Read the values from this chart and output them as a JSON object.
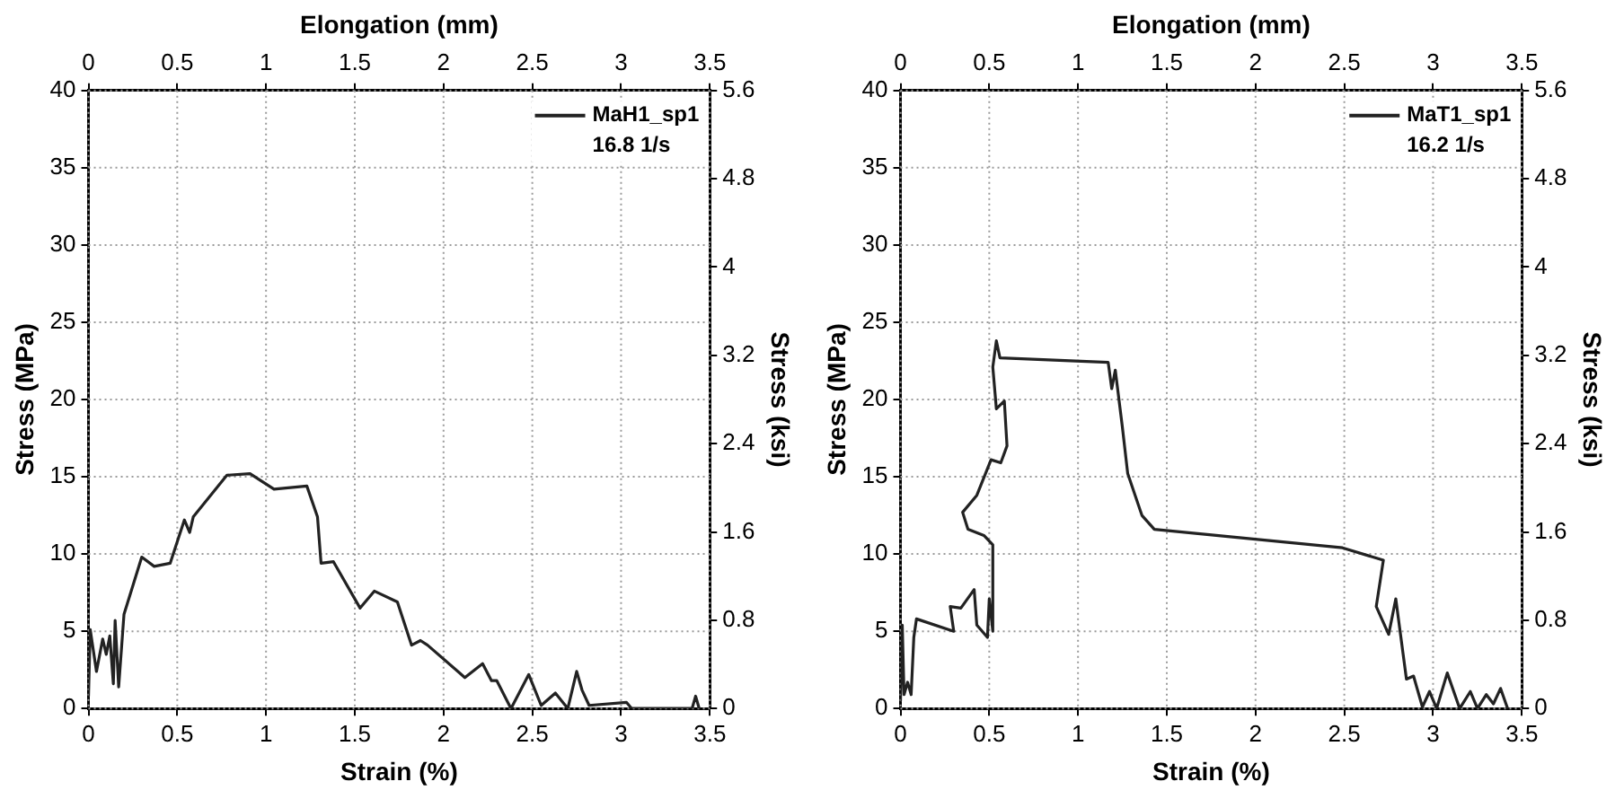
{
  "chart_data": [
    {
      "type": "line",
      "xlabel": "Strain (%)",
      "x2label": "Elongation (mm)",
      "ylabel": "Stress (MPa)",
      "y2label": "Stress (ksi)",
      "xlim": [
        0,
        3.5
      ],
      "xticks": [
        0,
        0.5,
        1,
        1.5,
        2,
        2.5,
        3,
        3.5
      ],
      "x2lim": [
        0,
        3.5
      ],
      "x2ticks": [
        0,
        0.5,
        1,
        1.5,
        2,
        2.5,
        3,
        3.5
      ],
      "ylim": [
        0,
        40
      ],
      "yticks": [
        0,
        5,
        10,
        15,
        20,
        25,
        30,
        35,
        40
      ],
      "y2lim": [
        0,
        5.6
      ],
      "y2ticks": [
        0,
        0.8,
        1.6,
        2.4,
        3.2,
        4,
        4.8,
        5.6
      ],
      "grid": true,
      "legend": "top right",
      "marker": "none",
      "annotations": [
        "16.8 1/s"
      ],
      "series": [
        {
          "name": "MaH1_sp1",
          "color": "#222222",
          "x": [
            0,
            0.01,
            0.045,
            0.08,
            0.1,
            0.12,
            0.14,
            0.15,
            0.17,
            0.2,
            0.3,
            0.37,
            0.46,
            0.54,
            0.57,
            0.59,
            0.78,
            0.91,
            1.045,
            1.23,
            1.29,
            1.31,
            1.38,
            1.53,
            1.61,
            1.74,
            1.82,
            1.87,
            1.91,
            2.12,
            2.22,
            2.27,
            2.3,
            2.38,
            2.48,
            2.55,
            2.63,
            2.7,
            2.75,
            2.78,
            2.82,
            3.03,
            3.06,
            3.4,
            3.42,
            3.44
          ],
          "values": [
            0.8,
            5.1,
            2.4,
            4.5,
            3.5,
            4.7,
            1.6,
            5.7,
            1.4,
            6.1,
            9.8,
            9.2,
            9.4,
            12.2,
            11.4,
            12.4,
            15.1,
            15.2,
            14.2,
            14.4,
            12.4,
            9.4,
            9.5,
            6.5,
            7.6,
            6.9,
            4.1,
            4.4,
            4.1,
            2,
            2.9,
            1.8,
            1.8,
            0,
            2.2,
            0.2,
            1,
            0,
            2.4,
            1.2,
            0.2,
            0.4,
            0,
            0,
            0.8,
            0
          ]
        }
      ]
    },
    {
      "type": "line",
      "xlabel": "Strain (%)",
      "x2label": "Elongation (mm)",
      "ylabel": "Stress (MPa)",
      "y2label": "Stress (ksi)",
      "xlim": [
        0,
        3.5
      ],
      "xticks": [
        0,
        0.5,
        1,
        1.5,
        2,
        2.5,
        3,
        3.5
      ],
      "x2lim": [
        0,
        3.5
      ],
      "x2ticks": [
        0,
        0.5,
        1,
        1.5,
        2,
        2.5,
        3,
        3.5
      ],
      "ylim": [
        0,
        40
      ],
      "yticks": [
        0,
        5,
        10,
        15,
        20,
        25,
        30,
        35,
        40
      ],
      "y2lim": [
        0,
        5.6
      ],
      "y2ticks": [
        0,
        0.8,
        1.6,
        2.4,
        3.2,
        4,
        4.8,
        5.6
      ],
      "grid": true,
      "legend": "top right",
      "marker": "none",
      "annotations": [
        "16.2 1/s"
      ],
      "series": [
        {
          "name": "MaT1_sp1",
          "color": "#222222",
          "x": [
            0,
            0.01,
            0.02,
            0.04,
            0.06,
            0.075,
            0.09,
            0.3,
            0.28,
            0.34,
            0.415,
            0.43,
            0.49,
            0.5,
            0.52,
            0.52,
            0.47,
            0.38,
            0.35,
            0.43,
            0.51,
            0.565,
            0.6,
            0.585,
            0.54,
            0.52,
            0.54,
            0.56,
            1.17,
            1.19,
            1.21,
            1.25,
            1.28,
            1.36,
            1.43,
            2.49,
            2.72,
            2.68,
            2.75,
            2.79,
            2.85,
            2.89,
            2.94,
            2.98,
            3.02,
            3.08,
            3.15,
            3.21,
            3.25,
            3.3,
            3.34,
            3.38,
            3.42
          ],
          "values": [
            0.5,
            5.4,
            0.9,
            1.7,
            0.9,
            4.6,
            5.8,
            5,
            6.6,
            6.5,
            7.7,
            5.4,
            4.6,
            7.1,
            5,
            10.6,
            11.2,
            11.6,
            12.7,
            13.8,
            16.1,
            15.9,
            17,
            19.9,
            19.4,
            22.1,
            23.8,
            22.7,
            22.4,
            20.7,
            21.9,
            18.2,
            15.2,
            12.5,
            11.6,
            10.4,
            9.6,
            6.6,
            4.8,
            7.1,
            1.9,
            2.1,
            0.1,
            1.1,
            0,
            2.3,
            0,
            1.1,
            0,
            0.9,
            0.3,
            1.3,
            0
          ]
        }
      ]
    }
  ]
}
